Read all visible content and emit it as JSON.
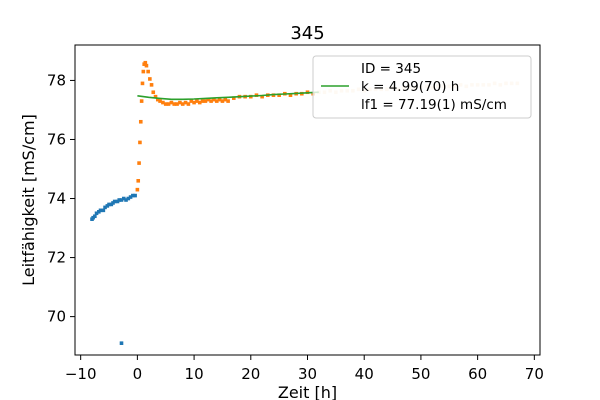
{
  "chart_data": {
    "type": "scatter",
    "title": "345",
    "xlabel": "Zeit [h]",
    "ylabel": "Leitfähigkeit [mS/cm]",
    "xlim": [
      -11,
      71
    ],
    "ylim": [
      68.7,
      79.2
    ],
    "xticks": [
      -10,
      0,
      10,
      20,
      30,
      40,
      50,
      60,
      70
    ],
    "yticks": [
      70,
      72,
      74,
      76,
      78
    ],
    "grid": false,
    "legend_position": "top-right",
    "legend": [
      {
        "label": "ID = 345",
        "marker": "none"
      },
      {
        "label": "k = 4.99(70) h",
        "marker": "line",
        "color": "#2ca02c"
      },
      {
        "label": "lf1 = 77.19(1) mS/cm",
        "marker": "none"
      }
    ],
    "series": [
      {
        "kind": "scatter",
        "color": "#1f77b4",
        "points": [
          [
            -8.0,
            73.3
          ],
          [
            -7.8,
            73.35
          ],
          [
            -7.5,
            73.4
          ],
          [
            -7.2,
            73.5
          ],
          [
            -6.8,
            73.55
          ],
          [
            -6.5,
            73.6
          ],
          [
            -6.0,
            73.6
          ],
          [
            -5.7,
            73.7
          ],
          [
            -5.3,
            73.75
          ],
          [
            -5.0,
            73.8
          ],
          [
            -4.6,
            73.8
          ],
          [
            -4.3,
            73.85
          ],
          [
            -4.0,
            73.9
          ],
          [
            -3.5,
            73.9
          ],
          [
            -3.2,
            73.95
          ],
          [
            -2.8,
            73.95
          ],
          [
            -2.4,
            74.0
          ],
          [
            -2.0,
            73.95
          ],
          [
            -1.6,
            74.0
          ],
          [
            -1.2,
            74.05
          ],
          [
            -0.8,
            74.1
          ],
          [
            -0.4,
            74.1
          ],
          [
            -2.8,
            69.1
          ]
        ]
      },
      {
        "kind": "scatter",
        "color": "#ff7f0e",
        "points": [
          [
            0.0,
            74.3
          ],
          [
            0.15,
            74.6
          ],
          [
            0.3,
            75.2
          ],
          [
            0.45,
            75.9
          ],
          [
            0.6,
            76.6
          ],
          [
            0.75,
            77.3
          ],
          [
            0.9,
            77.9
          ],
          [
            1.05,
            78.3
          ],
          [
            1.2,
            78.55
          ],
          [
            1.4,
            78.6
          ],
          [
            1.6,
            78.5
          ],
          [
            1.9,
            78.3
          ],
          [
            2.2,
            78.05
          ],
          [
            2.5,
            77.85
          ],
          [
            2.8,
            77.6
          ],
          [
            3.2,
            77.45
          ],
          [
            3.6,
            77.35
          ],
          [
            4.0,
            77.3
          ],
          [
            4.5,
            77.25
          ],
          [
            5.0,
            77.2
          ],
          [
            5.5,
            77.2
          ],
          [
            6.0,
            77.25
          ],
          [
            6.5,
            77.2
          ],
          [
            7.0,
            77.2
          ],
          [
            7.5,
            77.25
          ],
          [
            8.0,
            77.2
          ],
          [
            8.5,
            77.25
          ],
          [
            9.0,
            77.2
          ],
          [
            9.5,
            77.3
          ],
          [
            10.0,
            77.25
          ],
          [
            10.5,
            77.3
          ],
          [
            11.0,
            77.25
          ],
          [
            11.5,
            77.3
          ],
          [
            12.0,
            77.3
          ],
          [
            12.5,
            77.35
          ],
          [
            13.0,
            77.3
          ],
          [
            13.5,
            77.35
          ],
          [
            14.0,
            77.3
          ],
          [
            14.5,
            77.35
          ],
          [
            15.0,
            77.3
          ],
          [
            15.5,
            77.35
          ],
          [
            16.0,
            77.3
          ],
          [
            17.0,
            77.4
          ],
          [
            18.0,
            77.45
          ],
          [
            19.0,
            77.45
          ],
          [
            20.0,
            77.45
          ],
          [
            21.0,
            77.5
          ],
          [
            22.0,
            77.45
          ],
          [
            23.0,
            77.5
          ],
          [
            24.0,
            77.5
          ],
          [
            25.0,
            77.5
          ],
          [
            26.0,
            77.55
          ],
          [
            27.0,
            77.5
          ],
          [
            28.0,
            77.55
          ],
          [
            29.0,
            77.55
          ],
          [
            30.0,
            77.6
          ],
          [
            31.0,
            77.55
          ]
        ]
      },
      {
        "kind": "scatter",
        "color": "#fbe2c4",
        "points": [
          [
            32.0,
            77.6
          ],
          [
            33.0,
            77.6
          ],
          [
            34.0,
            77.65
          ],
          [
            35.0,
            77.6
          ],
          [
            36.0,
            77.65
          ],
          [
            37.0,
            77.65
          ],
          [
            38.0,
            77.65
          ],
          [
            39.0,
            77.7
          ],
          [
            40.0,
            77.65
          ],
          [
            41.0,
            77.7
          ],
          [
            42.0,
            77.7
          ],
          [
            43.0,
            77.7
          ],
          [
            44.0,
            77.7
          ],
          [
            45.0,
            77.75
          ],
          [
            46.0,
            77.7
          ],
          [
            47.0,
            77.75
          ],
          [
            48.0,
            77.75
          ],
          [
            49.0,
            77.75
          ],
          [
            50.0,
            77.75
          ],
          [
            51.0,
            77.8
          ],
          [
            52.0,
            77.75
          ],
          [
            53.0,
            77.8
          ],
          [
            54.0,
            77.8
          ],
          [
            55.0,
            77.8
          ],
          [
            56.0,
            77.8
          ],
          [
            57.0,
            77.85
          ],
          [
            58.0,
            77.8
          ],
          [
            59.0,
            77.85
          ],
          [
            60.0,
            77.85
          ],
          [
            61.0,
            77.85
          ],
          [
            62.0,
            77.85
          ],
          [
            63.0,
            77.9
          ],
          [
            64.0,
            77.85
          ],
          [
            65.0,
            77.9
          ],
          [
            66.0,
            77.9
          ],
          [
            67.0,
            77.9
          ]
        ]
      },
      {
        "kind": "line",
        "color": "#2ca02c",
        "points": [
          [
            0.0,
            77.48
          ],
          [
            2.0,
            77.43
          ],
          [
            4.0,
            77.39
          ],
          [
            6.0,
            77.36
          ],
          [
            8.0,
            77.36
          ],
          [
            10.0,
            77.37
          ],
          [
            12.0,
            77.39
          ],
          [
            14.0,
            77.41
          ],
          [
            16.0,
            77.43
          ],
          [
            18.0,
            77.45
          ],
          [
            20.0,
            77.47
          ],
          [
            22.0,
            77.49
          ],
          [
            24.0,
            77.52
          ],
          [
            26.0,
            77.54
          ],
          [
            28.0,
            77.56
          ],
          [
            30.0,
            77.58
          ],
          [
            32.0,
            77.6
          ]
        ]
      }
    ]
  }
}
